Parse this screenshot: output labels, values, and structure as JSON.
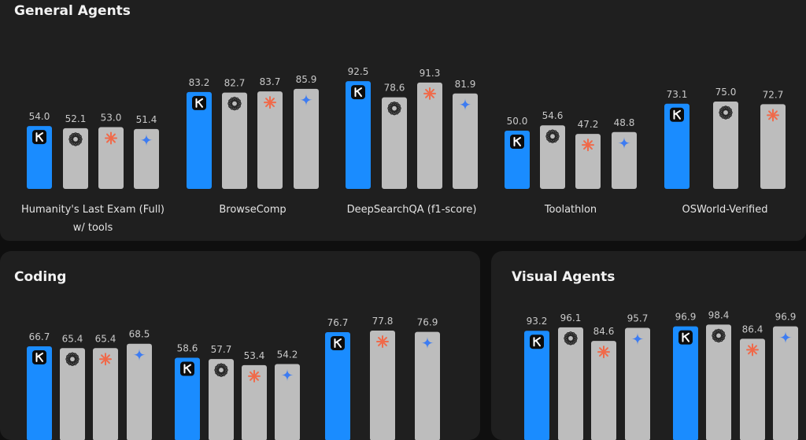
{
  "panels": {
    "general": {
      "title": "General Agents"
    },
    "coding": {
      "title": "Coding"
    },
    "visual": {
      "title": "Visual Agents"
    }
  },
  "colors": {
    "kimi_bar": "#1a8cff",
    "other_bar": "#bdbdbd",
    "panel_bg": "#1f1f1f",
    "page_bg": "#0f0f0f",
    "anthropic_icon": "#f06a4a"
  },
  "icons": {
    "K": "kimi-logo-icon",
    "O": "openai-logo-icon",
    "A": "anthropic-logo-icon",
    "G": "gemini-logo-icon"
  },
  "chart_data": [
    {
      "type": "bar",
      "panel": "general",
      "groups": [
        {
          "label": [
            "Humanity's Last Exam (Full)",
            "w/ tools"
          ],
          "bars": [
            {
              "model": "K",
              "value": 54.0
            },
            {
              "model": "O",
              "value": 52.1
            },
            {
              "model": "A",
              "value": 53.0
            },
            {
              "model": "G",
              "value": 51.4
            }
          ]
        },
        {
          "label": [
            "BrowseComp"
          ],
          "bars": [
            {
              "model": "K",
              "value": 83.2
            },
            {
              "model": "O",
              "value": 82.7
            },
            {
              "model": "A",
              "value": 83.7
            },
            {
              "model": "G",
              "value": 85.9
            }
          ]
        },
        {
          "label": [
            "DeepSearchQA (f1-score)"
          ],
          "bars": [
            {
              "model": "K",
              "value": 92.5
            },
            {
              "model": "O",
              "value": 78.6
            },
            {
              "model": "A",
              "value": 91.3
            },
            {
              "model": "G",
              "value": 81.9
            }
          ]
        },
        {
          "label": [
            "Toolathlon"
          ],
          "bars": [
            {
              "model": "K",
              "value": 50.0
            },
            {
              "model": "O",
              "value": 54.6
            },
            {
              "model": "A",
              "value": 47.2
            },
            {
              "model": "G",
              "value": 48.8
            }
          ]
        },
        {
          "label": [
            "OSWorld-Verified"
          ],
          "bars": [
            {
              "model": "K",
              "value": 73.1
            },
            {
              "model": "O",
              "value": 75.0
            },
            {
              "model": "A",
              "value": 72.7
            }
          ]
        }
      ]
    },
    {
      "type": "bar",
      "panel": "coding",
      "groups": [
        {
          "label": [],
          "bars": [
            {
              "model": "K",
              "value": 66.7
            },
            {
              "model": "O",
              "value": 65.4
            },
            {
              "model": "A",
              "value": 65.4
            },
            {
              "model": "G",
              "value": 68.5
            }
          ]
        },
        {
          "label": [],
          "bars": [
            {
              "model": "K",
              "value": 58.6
            },
            {
              "model": "O",
              "value": 57.7
            },
            {
              "model": "A",
              "value": 53.4
            },
            {
              "model": "G",
              "value": 54.2
            }
          ]
        },
        {
          "label": [],
          "bars": [
            {
              "model": "K",
              "value": 76.7
            },
            {
              "model": "A",
              "value": 77.8
            },
            {
              "model": "G",
              "value": 76.9
            }
          ]
        }
      ]
    },
    {
      "type": "bar",
      "panel": "visual",
      "groups": [
        {
          "label": [],
          "bars": [
            {
              "model": "K",
              "value": 93.2
            },
            {
              "model": "O",
              "value": 96.1
            },
            {
              "model": "A",
              "value": 84.6
            },
            {
              "model": "G",
              "value": 95.7
            }
          ]
        },
        {
          "label": [],
          "bars": [
            {
              "model": "K",
              "value": 96.9
            },
            {
              "model": "O",
              "value": 98.4
            },
            {
              "model": "A",
              "value": 86.4
            },
            {
              "model": "G",
              "value": 96.9
            }
          ]
        }
      ]
    }
  ]
}
